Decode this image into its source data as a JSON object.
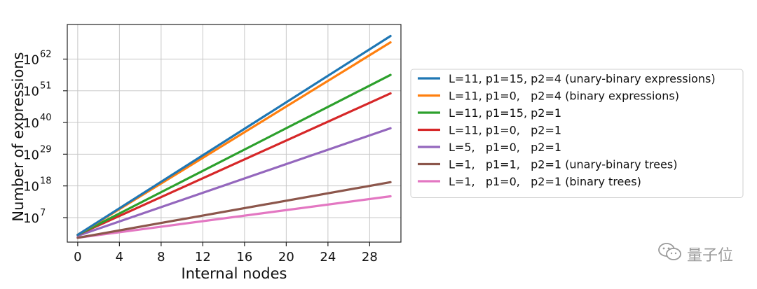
{
  "chart_data": {
    "type": "line",
    "title": "",
    "xlabel": "Internal nodes",
    "ylabel": "Number of expressions",
    "yscale": "log10",
    "xlim": [
      -1,
      31
    ],
    "ylim_log10": [
      -1.5,
      74
    ],
    "grid": true,
    "legend_position": "outside-right",
    "x_ticks": [
      0,
      4,
      8,
      12,
      16,
      20,
      24,
      28
    ],
    "y_ticks": [
      {
        "base": "10",
        "exp": "7",
        "log10": 7
      },
      {
        "base": "10",
        "exp": "18",
        "log10": 18
      },
      {
        "base": "10",
        "exp": "29",
        "log10": 29
      },
      {
        "base": "10",
        "exp": "40",
        "log10": 40
      },
      {
        "base": "10",
        "exp": "51",
        "log10": 51
      },
      {
        "base": "10",
        "exp": "62",
        "log10": 62
      }
    ],
    "x": [
      0,
      30
    ],
    "series": [
      {
        "name": "L=11, p1=15, p2=4 (unary-binary expressions)",
        "color": "#1f77b4",
        "log10_values": [
          1.04,
          70.0
        ]
      },
      {
        "name": "L=11, p1=0,   p2=4 (binary expressions)",
        "color": "#ff7f0e",
        "log10_values": [
          1.04,
          67.8
        ]
      },
      {
        "name": "L=11, p1=15, p2=1",
        "color": "#2ca02c",
        "log10_values": [
          1.04,
          56.5
        ]
      },
      {
        "name": "L=11, p1=0,   p2=1",
        "color": "#d62728",
        "log10_values": [
          1.04,
          50.1
        ]
      },
      {
        "name": "L=5,   p1=0,   p2=1",
        "color": "#9467bd",
        "log10_values": [
          0.7,
          38.0
        ]
      },
      {
        "name": "L=1,   p1=1,   p2=1 (unary-binary trees)",
        "color": "#8c564b",
        "log10_values": [
          0.0,
          19.3
        ]
      },
      {
        "name": "L=1,   p1=0,   p2=1 (binary trees)",
        "color": "#e377c2",
        "log10_values": [
          0.0,
          14.4
        ]
      }
    ]
  },
  "watermark": {
    "text": "量子位",
    "icon": "wechat-icon"
  }
}
